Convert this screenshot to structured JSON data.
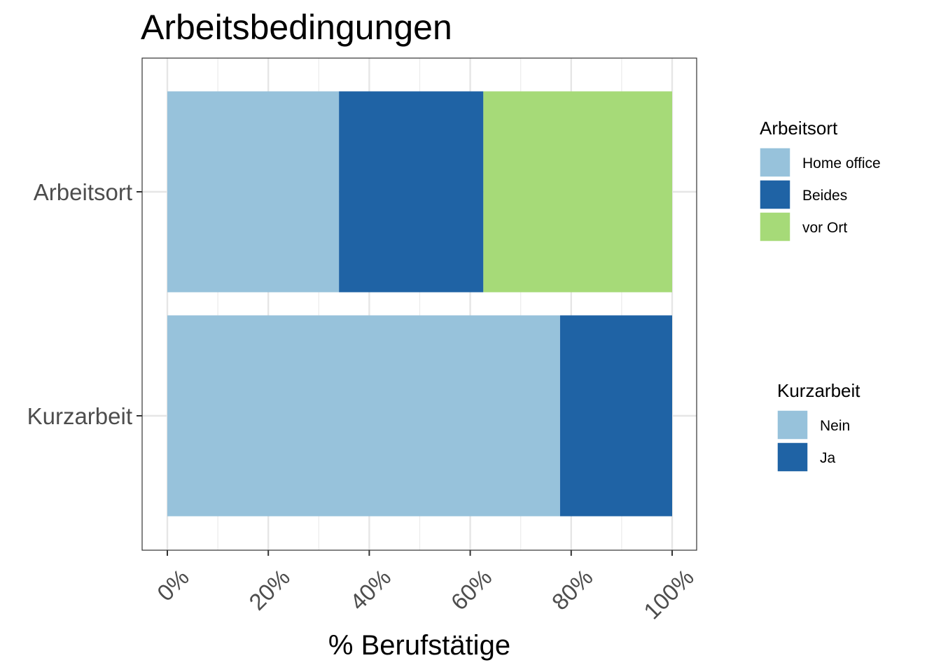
{
  "chart_data": {
    "type": "bar",
    "orientation": "horizontal",
    "stacked": true,
    "title": "Arbeitsbedingungen",
    "xlabel": "% Berufstätige",
    "ylabel": "",
    "xlim": [
      0,
      1
    ],
    "x_ticks": [
      "0%",
      "20%",
      "40%",
      "60%",
      "80%",
      "100%"
    ],
    "x_tick_values": [
      0,
      0.2,
      0.4,
      0.6,
      0.8,
      1.0
    ],
    "grid": true,
    "legend_placement": "right",
    "categories": [
      "Arbeitsort",
      "Kurzarbeit"
    ],
    "bars": [
      {
        "category": "Arbeitsort",
        "segments": [
          {
            "name": "Home office",
            "value": 0.34,
            "color": "#97c2db"
          },
          {
            "name": "Beides",
            "value": 0.286,
            "color": "#1f63a5"
          },
          {
            "name": "vor Ort",
            "value": 0.374,
            "color": "#a6da78"
          }
        ]
      },
      {
        "category": "Kurzarbeit",
        "segments": [
          {
            "name": "Nein",
            "value": 0.778,
            "color": "#97c2db"
          },
          {
            "name": "Ja",
            "value": 0.222,
            "color": "#1f63a5"
          }
        ]
      }
    ],
    "legends": [
      {
        "title": "Arbeitsort",
        "entries": [
          {
            "label": "Home office",
            "color": "#97c2db"
          },
          {
            "label": "Beides",
            "color": "#1f63a5"
          },
          {
            "label": "vor Ort",
            "color": "#a6da78"
          }
        ]
      },
      {
        "title": "Kurzarbeit",
        "entries": [
          {
            "label": "Nein",
            "color": "#97c2db"
          },
          {
            "label": "Ja",
            "color": "#1f63a5"
          }
        ]
      }
    ]
  }
}
